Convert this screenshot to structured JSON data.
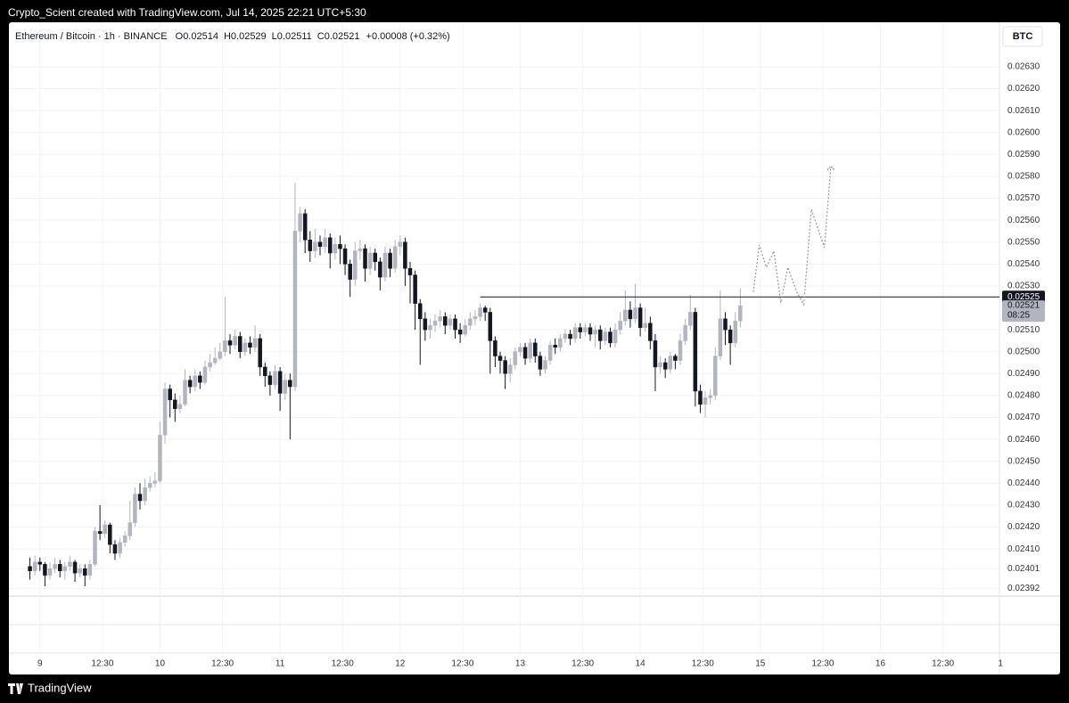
{
  "page": {
    "attribution": "Crypto_Scient created with TradingView.com, Jul 14, 2025 22:21 UTC+5:30",
    "footer": "TradingView"
  },
  "chart_data": {
    "type": "candlestick",
    "symbol": "Ethereum / Bitcoin · 1h · BINANCE",
    "ohlc": [
      {
        "label": "O",
        "value": 0.02514
      },
      {
        "label": "H",
        "value": 0.02529
      },
      {
        "label": "L",
        "value": 0.02511
      },
      {
        "label": "C",
        "value": 0.02521
      }
    ],
    "change": "+0.00008 (+0.32%)",
    "currency": "BTC",
    "up_color": "#b2b5be",
    "down_color": "#131722",
    "grid": true,
    "xlim": [
      -6.2,
      191.8
    ],
    "ylim": [
      0.023885,
      0.026503
    ],
    "xticks": [
      {
        "value": 0,
        "label": "9"
      },
      {
        "value": 12.5,
        "label": "12:30"
      },
      {
        "value": 24,
        "label": "10"
      },
      {
        "value": 36.5,
        "label": "12:30"
      },
      {
        "value": 48,
        "label": "11"
      },
      {
        "value": 60.5,
        "label": "12:30"
      },
      {
        "value": 72,
        "label": "12"
      },
      {
        "value": 84.5,
        "label": "12:30"
      },
      {
        "value": 96,
        "label": "13"
      },
      {
        "value": 108.5,
        "label": "12:30"
      },
      {
        "value": 120,
        "label": "14"
      },
      {
        "value": 132.5,
        "label": "12:30"
      },
      {
        "value": 144,
        "label": "15"
      },
      {
        "value": 156.5,
        "label": "12:30"
      },
      {
        "value": 168,
        "label": "16"
      },
      {
        "value": 180.5,
        "label": "12:30"
      },
      {
        "value": 192,
        "label": "1"
      }
    ],
    "yticks": [
      {
        "value": 0.0263,
        "label": "0.02630"
      },
      {
        "value": 0.0262,
        "label": "0.02620"
      },
      {
        "value": 0.0261,
        "label": "0.02610"
      },
      {
        "value": 0.026,
        "label": "0.02600"
      },
      {
        "value": 0.0259,
        "label": "0.02590"
      },
      {
        "value": 0.0258,
        "label": "0.02580"
      },
      {
        "value": 0.0257,
        "label": "0.02570"
      },
      {
        "value": 0.0256,
        "label": "0.02560"
      },
      {
        "value": 0.0255,
        "label": "0.02550"
      },
      {
        "value": 0.0254,
        "label": "0.02540"
      },
      {
        "value": 0.0253,
        "label": "0.02530"
      },
      {
        "value": 0.0251,
        "label": "0.02510"
      },
      {
        "value": 0.025,
        "label": "0.02500"
      },
      {
        "value": 0.0249,
        "label": "0.02490"
      },
      {
        "value": 0.0248,
        "label": "0.02480"
      },
      {
        "value": 0.0247,
        "label": "0.02470"
      },
      {
        "value": 0.0246,
        "label": "0.02460"
      },
      {
        "value": 0.0245,
        "label": "0.02450"
      },
      {
        "value": 0.0244,
        "label": "0.02440"
      },
      {
        "value": 0.0243,
        "label": "0.02430"
      },
      {
        "value": 0.0242,
        "label": "0.02420"
      },
      {
        "value": 0.0241,
        "label": "0.02410"
      },
      0.02401,
      0.02392
    ],
    "x": [
      -2,
      -1,
      0,
      1,
      2,
      3,
      4,
      5,
      6,
      7,
      8,
      9,
      10,
      11,
      12,
      13,
      14,
      15,
      16,
      17,
      18,
      19,
      20,
      21,
      22,
      23,
      24,
      25,
      26,
      27,
      28,
      29,
      30,
      31,
      32,
      33,
      34,
      35,
      36,
      37,
      38,
      39,
      40,
      41,
      42,
      43,
      44,
      45,
      46,
      47,
      48,
      49,
      50,
      51,
      52,
      53,
      54,
      55,
      56,
      57,
      58,
      59,
      60,
      61,
      62,
      63,
      64,
      65,
      66,
      67,
      68,
      69,
      70,
      71,
      72,
      73,
      74,
      75,
      76,
      77,
      78,
      79,
      80,
      81,
      82,
      83,
      84,
      85,
      86,
      87,
      88,
      89,
      90,
      91,
      92,
      93,
      94,
      95,
      96,
      97,
      98,
      99,
      100,
      101,
      102,
      103,
      104,
      105,
      106,
      107,
      108,
      109,
      110,
      111,
      112,
      113,
      114,
      115,
      116,
      117,
      118,
      119,
      120,
      121,
      122,
      123,
      124,
      125,
      126,
      127,
      128,
      129,
      130,
      131,
      132,
      133,
      134,
      135,
      136,
      137,
      138,
      139,
      140
    ],
    "open": [
      0.02402,
      0.024,
      0.02404,
      0.02403,
      0.02398,
      0.02401,
      0.02403,
      0.024,
      0.02402,
      0.02404,
      0.02399,
      0.02401,
      0.02398,
      0.02403,
      0.02418,
      0.02417,
      0.02421,
      0.02412,
      0.02408,
      0.02413,
      0.02416,
      0.02422,
      0.02435,
      0.02432,
      0.02438,
      0.0244,
      0.02441,
      0.02462,
      0.02483,
      0.02478,
      0.02474,
      0.02476,
      0.02487,
      0.02484,
      0.02489,
      0.02486,
      0.02493,
      0.02495,
      0.02497,
      0.025,
      0.02505,
      0.02503,
      0.02507,
      0.025,
      0.02504,
      0.02502,
      0.02506,
      0.02493,
      0.02489,
      0.02485,
      0.02491,
      0.02481,
      0.02487,
      0.02484,
      0.02555,
      0.02563,
      0.02551,
      0.02546,
      0.0255,
      0.02548,
      0.02552,
      0.02545,
      0.02549,
      0.02547,
      0.0254,
      0.02533,
      0.02546,
      0.02547,
      0.02538,
      0.02545,
      0.02541,
      0.02534,
      0.02545,
      0.02538,
      0.02548,
      0.0255,
      0.02538,
      0.02535,
      0.02522,
      0.02515,
      0.0251,
      0.02512,
      0.02514,
      0.02516,
      0.02512,
      0.02515,
      0.0251,
      0.02508,
      0.02512,
      0.02515,
      0.02516,
      0.0252,
      0.02518,
      0.02505,
      0.02498,
      0.02496,
      0.0249,
      0.02494,
      0.025,
      0.02502,
      0.02497,
      0.02504,
      0.02498,
      0.02492,
      0.02496,
      0.02503,
      0.02502,
      0.02506,
      0.02508,
      0.02506,
      0.02511,
      0.02509,
      0.02511,
      0.02508,
      0.0251,
      0.02505,
      0.02509,
      0.02504,
      0.0251,
      0.02514,
      0.02519,
      0.02515,
      0.0252,
      0.02511,
      0.02513,
      0.02505,
      0.02493,
      0.02495,
      0.02492,
      0.02498,
      0.02496,
      0.02505,
      0.02512,
      0.02518,
      0.02482,
      0.02476,
      0.02479,
      0.0248,
      0.02498,
      0.02515,
      0.0251,
      0.02504,
      0.02514
    ],
    "high": [
      0.02406,
      0.02407,
      0.02406,
      0.02404,
      0.02404,
      0.02406,
      0.02405,
      0.02404,
      0.02407,
      0.02405,
      0.02403,
      0.02403,
      0.02405,
      0.0242,
      0.0243,
      0.02423,
      0.02422,
      0.02414,
      0.02415,
      0.02418,
      0.02432,
      0.02438,
      0.0244,
      0.02442,
      0.02443,
      0.02445,
      0.02468,
      0.02486,
      0.02485,
      0.02481,
      0.0248,
      0.02492,
      0.02489,
      0.02492,
      0.02491,
      0.02496,
      0.02499,
      0.02502,
      0.02504,
      0.02525,
      0.02508,
      0.0251,
      0.02509,
      0.02506,
      0.02507,
      0.02512,
      0.02508,
      0.02495,
      0.02491,
      0.02494,
      0.02493,
      0.0249,
      0.0249,
      0.02577,
      0.02566,
      0.02565,
      0.02555,
      0.02556,
      0.02553,
      0.02556,
      0.02554,
      0.02552,
      0.02553,
      0.02549,
      0.02542,
      0.0255,
      0.02551,
      0.02549,
      0.02548,
      0.02547,
      0.02543,
      0.02548,
      0.02547,
      0.02551,
      0.02553,
      0.02552,
      0.02541,
      0.02537,
      0.02524,
      0.02518,
      0.02515,
      0.02517,
      0.02519,
      0.02518,
      0.02517,
      0.02517,
      0.02513,
      0.02515,
      0.02518,
      0.02519,
      0.02522,
      0.02521,
      0.0252,
      0.02507,
      0.025,
      0.02498,
      0.02497,
      0.02502,
      0.02504,
      0.02504,
      0.02506,
      0.02506,
      0.025,
      0.02498,
      0.02505,
      0.02506,
      0.02508,
      0.0251,
      0.0251,
      0.02513,
      0.02513,
      0.02513,
      0.02513,
      0.02512,
      0.02512,
      0.02511,
      0.02511,
      0.02513,
      0.02518,
      0.02528,
      0.02523,
      0.02531,
      0.02522,
      0.0252,
      0.02516,
      0.02508,
      0.02498,
      0.02497,
      0.025,
      0.02499,
      0.02508,
      0.02515,
      0.02526,
      0.0252,
      0.02485,
      0.02482,
      0.02483,
      0.02502,
      0.02528,
      0.02518,
      0.02512,
      0.02518,
      0.02529
    ],
    "low": [
      0.02396,
      0.02398,
      0.024,
      0.02393,
      0.02396,
      0.02399,
      0.02397,
      0.02396,
      0.024,
      0.02395,
      0.02397,
      0.02393,
      0.02396,
      0.02402,
      0.02414,
      0.02415,
      0.02408,
      0.02405,
      0.02406,
      0.02411,
      0.02414,
      0.0242,
      0.02428,
      0.0243,
      0.02436,
      0.02438,
      0.0244,
      0.02458,
      0.0247,
      0.02468,
      0.02472,
      0.02475,
      0.02481,
      0.02482,
      0.02483,
      0.02485,
      0.02491,
      0.02494,
      0.02496,
      0.02498,
      0.02499,
      0.02501,
      0.02497,
      0.02498,
      0.02499,
      0.025,
      0.02489,
      0.02484,
      0.0248,
      0.02483,
      0.02473,
      0.02478,
      0.0246,
      0.02482,
      0.0255,
      0.02545,
      0.02541,
      0.02543,
      0.02544,
      0.02545,
      0.02538,
      0.02542,
      0.0254,
      0.02535,
      0.02525,
      0.0253,
      0.02542,
      0.02532,
      0.02535,
      0.02537,
      0.02528,
      0.02532,
      0.02534,
      0.02536,
      0.02544,
      0.0253,
      0.02522,
      0.0251,
      0.02494,
      0.02505,
      0.02506,
      0.02509,
      0.02511,
      0.02508,
      0.0251,
      0.02506,
      0.02504,
      0.02507,
      0.0251,
      0.02512,
      0.02514,
      0.02514,
      0.0249,
      0.02493,
      0.0249,
      0.02483,
      0.02486,
      0.02492,
      0.02498,
      0.02494,
      0.02495,
      0.02495,
      0.02489,
      0.0249,
      0.02494,
      0.02499,
      0.025,
      0.02504,
      0.02503,
      0.02504,
      0.02506,
      0.02507,
      0.02505,
      0.02502,
      0.02501,
      0.02503,
      0.02502,
      0.02502,
      0.02508,
      0.02512,
      0.02511,
      0.02513,
      0.02507,
      0.02509,
      0.02501,
      0.02482,
      0.0249,
      0.02488,
      0.0249,
      0.02492,
      0.02494,
      0.02503,
      0.0251,
      0.02475,
      0.02472,
      0.0247,
      0.02476,
      0.02478,
      0.02496,
      0.02503,
      0.02494,
      0.02502,
      0.02511
    ],
    "close": [
      0.024,
      0.02404,
      0.02403,
      0.02398,
      0.02401,
      0.02403,
      0.024,
      0.02402,
      0.02404,
      0.02399,
      0.02401,
      0.02398,
      0.02403,
      0.02418,
      0.02417,
      0.02421,
      0.02412,
      0.02408,
      0.02413,
      0.02416,
      0.02422,
      0.02435,
      0.02432,
      0.02438,
      0.0244,
      0.02441,
      0.02462,
      0.02483,
      0.02478,
      0.02474,
      0.02476,
      0.02487,
      0.02484,
      0.02489,
      0.02486,
      0.02493,
      0.02495,
      0.02497,
      0.025,
      0.02505,
      0.02503,
      0.02507,
      0.025,
      0.02504,
      0.02502,
      0.02506,
      0.02493,
      0.02489,
      0.02485,
      0.02491,
      0.02481,
      0.02487,
      0.02484,
      0.02555,
      0.02563,
      0.02551,
      0.02546,
      0.0255,
      0.02548,
      0.02552,
      0.02545,
      0.02549,
      0.02547,
      0.0254,
      0.02533,
      0.02546,
      0.02547,
      0.02538,
      0.02545,
      0.02541,
      0.02534,
      0.02545,
      0.02538,
      0.02548,
      0.0255,
      0.02538,
      0.02535,
      0.02522,
      0.02515,
      0.0251,
      0.02512,
      0.02514,
      0.02516,
      0.02512,
      0.02515,
      0.0251,
      0.02508,
      0.02512,
      0.02515,
      0.02516,
      0.0252,
      0.02518,
      0.02505,
      0.02498,
      0.02496,
      0.0249,
      0.02494,
      0.025,
      0.02502,
      0.02497,
      0.02504,
      0.02498,
      0.02492,
      0.02496,
      0.02503,
      0.02502,
      0.02506,
      0.02508,
      0.02506,
      0.02511,
      0.02509,
      0.02511,
      0.02508,
      0.0251,
      0.02505,
      0.02509,
      0.02504,
      0.0251,
      0.02514,
      0.02519,
      0.02515,
      0.0252,
      0.02511,
      0.02513,
      0.02505,
      0.02493,
      0.02495,
      0.02492,
      0.02498,
      0.02496,
      0.02505,
      0.02512,
      0.02518,
      0.02482,
      0.02476,
      0.02479,
      0.0248,
      0.02498,
      0.02515,
      0.0251,
      0.02504,
      0.02514,
      0.02521
    ],
    "level": {
      "value": 0.02525,
      "start_x": 88,
      "color": "#131722"
    },
    "last_price": {
      "value": 0.02521,
      "countdown": "08:25"
    },
    "projection": {
      "color": "#9598a1",
      "x": [
        142.6,
        143.8,
        145.2,
        146.7,
        148.1,
        149.5,
        151.3,
        152.7,
        154.2,
        156.8,
        158.1
      ],
      "y": [
        0.025272,
        0.025487,
        0.025385,
        0.025459,
        0.025223,
        0.025385,
        0.025272,
        0.025215,
        0.02565,
        0.025475,
        0.025845
      ]
    }
  }
}
